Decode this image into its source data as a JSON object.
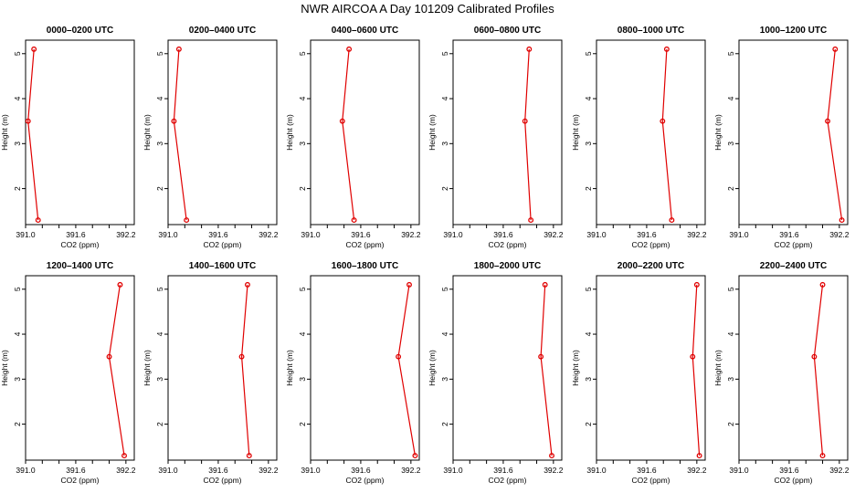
{
  "figure_title": "NWR AIRCOA A  Day 101209  Calibrated Profiles",
  "colors": {
    "series": "#e00000",
    "axes": "#000000",
    "background": "#ffffff"
  },
  "chart_data": [
    {
      "type": "line",
      "title": "0000–0200 UTC",
      "xlabel": "CO2 (ppm)",
      "ylabel": "Height (m)",
      "xlim": [
        391.0,
        392.3
      ],
      "ylim": [
        1.2,
        5.3
      ],
      "xticks": [
        "391.0",
        "391.6",
        "392.2"
      ],
      "yticks": [
        "2",
        "3",
        "4",
        "5"
      ],
      "co2": [
        391.15,
        391.03,
        391.1
      ],
      "height": [
        1.3,
        3.5,
        5.1
      ]
    },
    {
      "type": "line",
      "title": "0200–0400 UTC",
      "xlabel": "CO2 (ppm)",
      "ylabel": "Height (m)",
      "xlim": [
        391.0,
        392.3
      ],
      "ylim": [
        1.2,
        5.3
      ],
      "xticks": [
        "391.0",
        "391.6",
        "392.2"
      ],
      "yticks": [
        "2",
        "3",
        "4",
        "5"
      ],
      "co2": [
        391.22,
        391.07,
        391.13
      ],
      "height": [
        1.3,
        3.5,
        5.1
      ]
    },
    {
      "type": "line",
      "title": "0400–0600 UTC",
      "xlabel": "CO2 (ppm)",
      "ylabel": "Height (m)",
      "xlim": [
        391.0,
        392.3
      ],
      "ylim": [
        1.2,
        5.3
      ],
      "xticks": [
        "391.0",
        "391.6",
        "392.2"
      ],
      "yticks": [
        "2",
        "3",
        "4",
        "5"
      ],
      "co2": [
        391.52,
        391.38,
        391.46
      ],
      "height": [
        1.3,
        3.5,
        5.1
      ]
    },
    {
      "type": "line",
      "title": "0600–0800 UTC",
      "xlabel": "CO2 (ppm)",
      "ylabel": "Height (m)",
      "xlim": [
        391.0,
        392.3
      ],
      "ylim": [
        1.2,
        5.3
      ],
      "xticks": [
        "391.0",
        "391.6",
        "392.2"
      ],
      "yticks": [
        "2",
        "3",
        "4",
        "5"
      ],
      "co2": [
        391.93,
        391.86,
        391.91
      ],
      "height": [
        1.3,
        3.5,
        5.1
      ]
    },
    {
      "type": "line",
      "title": "0800–1000 UTC",
      "xlabel": "CO2 (ppm)",
      "ylabel": "Height (m)",
      "xlim": [
        391.0,
        392.3
      ],
      "ylim": [
        1.2,
        5.3
      ],
      "xticks": [
        "391.0",
        "391.6",
        "392.2"
      ],
      "yticks": [
        "2",
        "3",
        "4",
        "5"
      ],
      "co2": [
        391.9,
        391.79,
        391.84
      ],
      "height": [
        1.3,
        3.5,
        5.1
      ]
    },
    {
      "type": "line",
      "title": "1000–1200 UTC",
      "xlabel": "CO2 (ppm)",
      "ylabel": "Height (m)",
      "xlim": [
        391.0,
        392.3
      ],
      "ylim": [
        1.2,
        5.3
      ],
      "xticks": [
        "391.0",
        "391.6",
        "392.2"
      ],
      "yticks": [
        "2",
        "3",
        "4",
        "5"
      ],
      "co2": [
        392.23,
        392.06,
        392.15
      ],
      "height": [
        1.3,
        3.5,
        5.1
      ]
    },
    {
      "type": "line",
      "title": "1200–1400 UTC",
      "xlabel": "CO2 (ppm)",
      "ylabel": "Height (m)",
      "xlim": [
        391.0,
        392.3
      ],
      "ylim": [
        1.2,
        5.3
      ],
      "xticks": [
        "391.0",
        "391.6",
        "392.2"
      ],
      "yticks": [
        "2",
        "3",
        "4",
        "5"
      ],
      "co2": [
        392.18,
        392.0,
        392.13
      ],
      "height": [
        1.3,
        3.5,
        5.1
      ]
    },
    {
      "type": "line",
      "title": "1400–1600 UTC",
      "xlabel": "CO2 (ppm)",
      "ylabel": "Height (m)",
      "xlim": [
        391.0,
        392.3
      ],
      "ylim": [
        1.2,
        5.3
      ],
      "xticks": [
        "391.0",
        "391.6",
        "392.2"
      ],
      "yticks": [
        "2",
        "3",
        "4",
        "5"
      ],
      "co2": [
        391.97,
        391.88,
        391.95
      ],
      "height": [
        1.3,
        3.5,
        5.1
      ]
    },
    {
      "type": "line",
      "title": "1600–1800 UTC",
      "xlabel": "CO2 (ppm)",
      "ylabel": "Height (m)",
      "xlim": [
        391.0,
        392.3
      ],
      "ylim": [
        1.2,
        5.3
      ],
      "xticks": [
        "391.0",
        "391.6",
        "392.2"
      ],
      "yticks": [
        "2",
        "3",
        "4",
        "5"
      ],
      "co2": [
        392.25,
        392.05,
        392.18
      ],
      "height": [
        1.3,
        3.5,
        5.1
      ]
    },
    {
      "type": "line",
      "title": "1800–2000 UTC",
      "xlabel": "CO2 (ppm)",
      "ylabel": "Height (m)",
      "xlim": [
        391.0,
        392.3
      ],
      "ylim": [
        1.2,
        5.3
      ],
      "xticks": [
        "391.0",
        "391.6",
        "392.2"
      ],
      "yticks": [
        "2",
        "3",
        "4",
        "5"
      ],
      "co2": [
        392.18,
        392.05,
        392.1
      ],
      "height": [
        1.3,
        3.5,
        5.1
      ]
    },
    {
      "type": "line",
      "title": "2000–2200 UTC",
      "xlabel": "CO2 (ppm)",
      "ylabel": "Height (m)",
      "xlim": [
        391.0,
        392.3
      ],
      "ylim": [
        1.2,
        5.3
      ],
      "xticks": [
        "391.0",
        "391.6",
        "392.2"
      ],
      "yticks": [
        "2",
        "3",
        "4",
        "5"
      ],
      "co2": [
        392.23,
        392.15,
        392.2
      ],
      "height": [
        1.3,
        3.5,
        5.1
      ]
    },
    {
      "type": "line",
      "title": "2200–2400 UTC",
      "xlabel": "CO2 (ppm)",
      "ylabel": "Height (m)",
      "xlim": [
        391.0,
        392.3
      ],
      "ylim": [
        1.2,
        5.3
      ],
      "xticks": [
        "391.0",
        "391.6",
        "392.2"
      ],
      "yticks": [
        "2",
        "3",
        "4",
        "5"
      ],
      "co2": [
        392.0,
        391.9,
        392.0
      ],
      "height": [
        1.3,
        3.5,
        5.1
      ]
    }
  ]
}
